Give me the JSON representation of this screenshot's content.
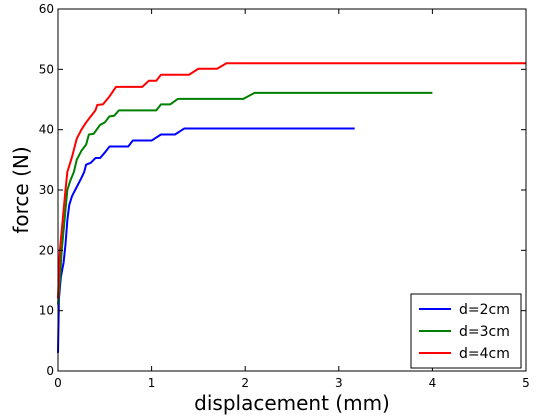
{
  "chart_data": {
    "type": "line",
    "title": "",
    "xlabel": "displacement (mm)",
    "ylabel": "force (N)",
    "xlim": [
      0,
      5
    ],
    "ylim": [
      0,
      60
    ],
    "xticks": [
      0,
      1,
      2,
      3,
      4,
      5
    ],
    "yticks": [
      0,
      10,
      20,
      30,
      40,
      50,
      60
    ],
    "grid": false,
    "legend_position": "bottom-right",
    "series": [
      {
        "name": "d=2cm",
        "color": "#0000ff",
        "points": [
          [
            0,
            3
          ],
          [
            0.01,
            12
          ],
          [
            0.03,
            15.5
          ],
          [
            0.06,
            18
          ],
          [
            0.08,
            21
          ],
          [
            0.1,
            25
          ],
          [
            0.12,
            27.5
          ],
          [
            0.15,
            29
          ],
          [
            0.2,
            30.5
          ],
          [
            0.25,
            32
          ],
          [
            0.28,
            33
          ],
          [
            0.3,
            34.2
          ],
          [
            0.35,
            34.5
          ],
          [
            0.4,
            35.3
          ],
          [
            0.45,
            35.3
          ],
          [
            0.5,
            36.2
          ],
          [
            0.55,
            37.2
          ],
          [
            0.75,
            37.2
          ],
          [
            0.8,
            38.2
          ],
          [
            1.0,
            38.2
          ],
          [
            1.1,
            39.2
          ],
          [
            1.25,
            39.2
          ],
          [
            1.35,
            40.2
          ],
          [
            3.17,
            40.2
          ]
        ]
      },
      {
        "name": "d=3cm",
        "color": "#008000",
        "points": [
          [
            0,
            11
          ],
          [
            0.02,
            15
          ],
          [
            0.04,
            20
          ],
          [
            0.07,
            25
          ],
          [
            0.1,
            30
          ],
          [
            0.13,
            31.5
          ],
          [
            0.17,
            33
          ],
          [
            0.2,
            35
          ],
          [
            0.25,
            36.5
          ],
          [
            0.3,
            37.5
          ],
          [
            0.33,
            39.2
          ],
          [
            0.38,
            39.3
          ],
          [
            0.45,
            40.8
          ],
          [
            0.5,
            41.2
          ],
          [
            0.55,
            42.2
          ],
          [
            0.6,
            42.3
          ],
          [
            0.65,
            43.2
          ],
          [
            1.05,
            43.2
          ],
          [
            1.1,
            44.2
          ],
          [
            1.2,
            44.2
          ],
          [
            1.28,
            45.1
          ],
          [
            1.98,
            45.1
          ],
          [
            2.1,
            46.1
          ],
          [
            4.0,
            46.1
          ]
        ]
      },
      {
        "name": "d=4cm",
        "color": "#ff0000",
        "points": [
          [
            0,
            12
          ],
          [
            0.02,
            20
          ],
          [
            0.05,
            25
          ],
          [
            0.08,
            30
          ],
          [
            0.1,
            33
          ],
          [
            0.15,
            35.5
          ],
          [
            0.2,
            38.5
          ],
          [
            0.25,
            40
          ],
          [
            0.3,
            41.2
          ],
          [
            0.35,
            42.2
          ],
          [
            0.4,
            43.2
          ],
          [
            0.42,
            44.1
          ],
          [
            0.48,
            44.2
          ],
          [
            0.55,
            45.5
          ],
          [
            0.62,
            47.1
          ],
          [
            0.9,
            47.1
          ],
          [
            0.97,
            48.1
          ],
          [
            1.05,
            48.1
          ],
          [
            1.1,
            49.1
          ],
          [
            1.4,
            49.1
          ],
          [
            1.5,
            50.1
          ],
          [
            1.7,
            50.1
          ],
          [
            1.8,
            51.0
          ],
          [
            5.0,
            51.0
          ]
        ]
      }
    ]
  }
}
